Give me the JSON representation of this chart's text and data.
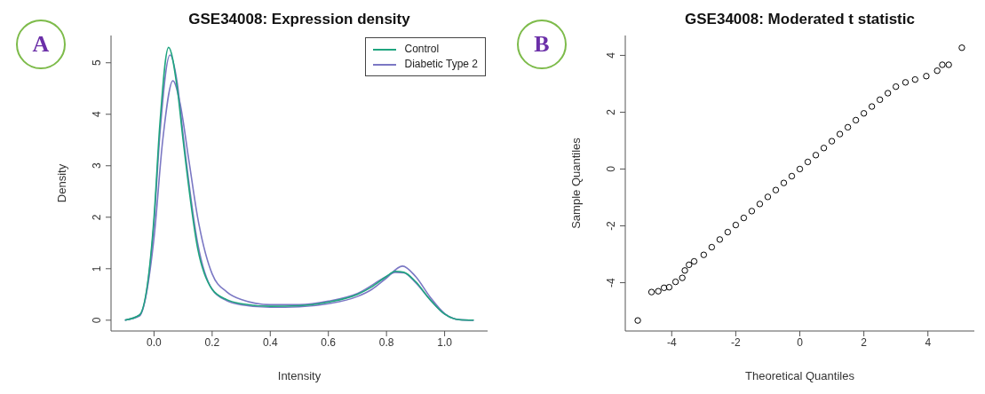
{
  "chart_data": [
    {
      "type": "line",
      "title": "GSE34008: Expression density",
      "xlabel": "Intensity",
      "ylabel": "Density",
      "annotations": [
        "A"
      ],
      "legend": "top right",
      "marker": "none",
      "line_style": "solid",
      "xlim": [
        -0.148,
        1.148
      ],
      "xticks": [
        {
          "value": 0,
          "label": "0.0"
        },
        {
          "value": 0.2,
          "label": "0.2"
        },
        {
          "value": 0.4,
          "label": "0.4"
        },
        {
          "value": 0.6,
          "label": "0.6"
        },
        {
          "value": 0.8,
          "label": "0.8"
        },
        {
          "value": 1,
          "label": "1.0"
        }
      ],
      "ylim": [
        -0.21,
        5.53
      ],
      "yticks": [
        0,
        1,
        2,
        3,
        4,
        5
      ],
      "series": [
        {
          "name": "Control",
          "color": "#1fa57f",
          "x": [
            -0.1,
            -0.05,
            0,
            0.02,
            0.05,
            0.08,
            0.1,
            0.15,
            0.2,
            0.25,
            0.3,
            0.4,
            0.5,
            0.6,
            0.7,
            0.75,
            0.8,
            0.83,
            0.86,
            0.9,
            0.95,
            1,
            1.05,
            1.1
          ],
          "values": [
            0,
            0.1,
            2,
            3.8,
            5.3,
            4.5,
            3.5,
            1.4,
            0.6,
            0.4,
            0.32,
            0.27,
            0.28,
            0.35,
            0.5,
            0.65,
            0.85,
            0.95,
            0.93,
            0.75,
            0.4,
            0.12,
            0.01,
            0
          ]
        },
        {
          "name": "Diabetic Type 2",
          "color": "#7b78c4",
          "x": [
            -0.1,
            -0.05,
            0,
            0.02,
            0.055,
            0.08,
            0.1,
            0.15,
            0.2,
            0.25,
            0.3,
            0.4,
            0.5,
            0.6,
            0.7,
            0.75,
            0.8,
            0.855,
            0.9,
            0.95,
            1,
            1.05,
            1.1
          ],
          "values": [
            0,
            0.1,
            1.9,
            3.6,
            5.15,
            4.6,
            3.6,
            1.5,
            0.6,
            0.38,
            0.3,
            0.25,
            0.26,
            0.32,
            0.46,
            0.6,
            0.82,
            1.05,
            0.85,
            0.45,
            0.13,
            0.01,
            0
          ]
        },
        {
          "color": "#7b78c4",
          "x": [
            -0.1,
            -0.05,
            0,
            0.03,
            0.065,
            0.09,
            0.12,
            0.15,
            0.2,
            0.25,
            0.3,
            0.4,
            0.5,
            0.6,
            0.7,
            0.8,
            0.83,
            0.86,
            0.9,
            0.95,
            1,
            1.05,
            1.1
          ],
          "values": [
            0,
            0.08,
            1.6,
            3.5,
            4.65,
            4.2,
            3.1,
            2,
            0.9,
            0.55,
            0.4,
            0.3,
            0.3,
            0.37,
            0.52,
            0.85,
            0.93,
            0.92,
            0.73,
            0.4,
            0.12,
            0.01,
            0
          ]
        }
      ]
    },
    {
      "type": "scatter",
      "title": "GSE34008: Moderated t statistic",
      "xlabel": "Theoretical Quantiles",
      "ylabel": "Sample Quantiles",
      "annotations": [
        "B"
      ],
      "marker": "circle",
      "xlim": [
        -5.45,
        5.45
      ],
      "xticks": [
        -4,
        -2,
        0,
        2,
        4
      ],
      "ylim": [
        -5.7,
        4.7
      ],
      "yticks": [
        -4,
        -2,
        0,
        2,
        4
      ],
      "series": [
        {
          "color": "#000000",
          "x": [
            -5.06,
            -4.63,
            -4.42,
            -4.24,
            -4.08,
            -3.88,
            -3.67,
            -3.59,
            -3.46,
            -3.3,
            -3,
            -2.75,
            -2.5,
            -2.25,
            -2,
            -1.75,
            -1.5,
            -1.25,
            -1,
            -0.75,
            -0.5,
            -0.25,
            0,
            0.25,
            0.5,
            0.75,
            1,
            1.25,
            1.5,
            1.75,
            2,
            2.25,
            2.5,
            2.75,
            3,
            3.3,
            3.6,
            3.95,
            4.29,
            4.45,
            4.65,
            5.06
          ],
          "values": [
            -5.33,
            -4.33,
            -4.3,
            -4.18,
            -4.16,
            -3.97,
            -3.83,
            -3.57,
            -3.37,
            -3.25,
            -3.02,
            -2.75,
            -2.48,
            -2.22,
            -1.97,
            -1.72,
            -1.48,
            -1.23,
            -0.98,
            -0.74,
            -0.49,
            -0.25,
            0,
            0.25,
            0.49,
            0.74,
            0.98,
            1.23,
            1.47,
            1.72,
            1.96,
            2.2,
            2.44,
            2.67,
            2.9,
            3.05,
            3.15,
            3.27,
            3.46,
            3.67,
            3.67,
            4.27
          ]
        }
      ]
    }
  ]
}
